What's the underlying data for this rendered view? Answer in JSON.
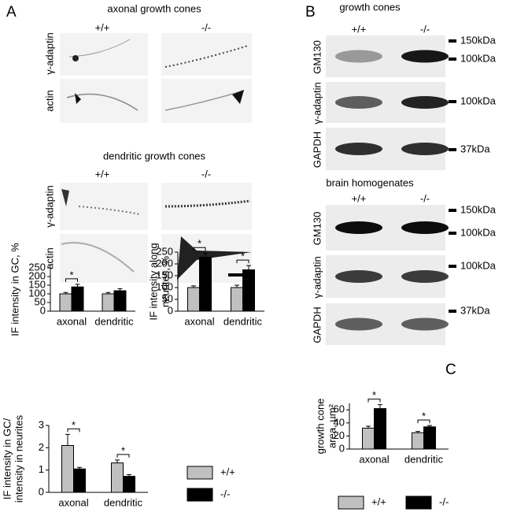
{
  "panel_A": {
    "label": "A",
    "sections": [
      {
        "title": "axonal growth cones",
        "columns": [
          "+/+",
          "-/-"
        ],
        "rows": [
          "γ-adaptin",
          "actin"
        ]
      },
      {
        "title": "dendritic growth cones",
        "columns": [
          "+/+",
          "-/-"
        ],
        "rows": [
          "γ-adaptin",
          "actin"
        ]
      }
    ]
  },
  "panel_B": {
    "label": "B",
    "sections": [
      {
        "title": "growth cones",
        "columns": [
          "+/+",
          "-/-"
        ],
        "blots": [
          {
            "label": "GM130",
            "markers": [
              "150kDa",
              "100kDa"
            ]
          },
          {
            "label": "γ-adaptin",
            "markers": [
              "100kDa"
            ]
          },
          {
            "label": "GAPDH",
            "markers": [
              "37kDa"
            ]
          }
        ]
      },
      {
        "title": "brain homogenates",
        "columns": [
          "+/+",
          "-/-"
        ],
        "blots": [
          {
            "label": "GM130",
            "markers": [
              "150kDa",
              "100kDa"
            ]
          },
          {
            "label": "γ-adaptin",
            "markers": [
              "100kDa"
            ]
          },
          {
            "label": "GAPDH",
            "markers": [
              "37kDa"
            ]
          }
        ]
      }
    ]
  },
  "panel_C": {
    "label": "C"
  },
  "chart_data": [
    {
      "type": "bar",
      "ylabel_lines": [
        "IF intensity in GC, %"
      ],
      "categories": [
        "axonal",
        "dendritic"
      ],
      "series": [
        {
          "color": "#c0c0c0",
          "values": [
            100,
            100
          ],
          "errors": [
            8,
            8
          ]
        },
        {
          "color": "#000000",
          "values": [
            140,
            118
          ],
          "errors": [
            15,
            12
          ]
        }
      ],
      "ylim": [
        0,
        250
      ],
      "yticks": [
        0,
        50,
        100,
        150,
        200,
        250
      ],
      "significant": [
        true,
        false
      ],
      "significance_label": "*",
      "legend": false
    },
    {
      "type": "bar",
      "ylabel_lines": [
        "IF intensity along",
        "neurites, %"
      ],
      "categories": [
        "axonal",
        "dendritic"
      ],
      "series": [
        {
          "color": "#c0c0c0",
          "values": [
            100,
            100
          ],
          "errors": [
            7,
            10
          ]
        },
        {
          "color": "#000000",
          "values": [
            228,
            175
          ],
          "errors": [
            18,
            18
          ]
        }
      ],
      "ylim": [
        0,
        250
      ],
      "yticks": [
        0,
        50,
        100,
        150,
        200,
        250
      ],
      "significant": [
        true,
        true
      ],
      "significance_label": "*",
      "legend": false
    },
    {
      "type": "bar",
      "ylabel_lines": [
        "IF intensity in GC/",
        "intensity in neurites"
      ],
      "categories": [
        "axonal",
        "dendritic"
      ],
      "series": [
        {
          "name": "+/+",
          "color": "#c0c0c0",
          "values": [
            2.1,
            1.32
          ],
          "errors": [
            0.5,
            0.13
          ]
        },
        {
          "name": "-/-",
          "color": "#000000",
          "values": [
            1.05,
            0.72
          ],
          "errors": [
            0.07,
            0.08
          ]
        }
      ],
      "ylim": [
        0,
        3
      ],
      "yticks": [
        0,
        1,
        2,
        3
      ],
      "significant": [
        true,
        true
      ],
      "significance_label": "*",
      "legend": true
    },
    {
      "type": "bar",
      "ylabel_lines": [
        "growth cone",
        "area, µm²"
      ],
      "categories": [
        "axonal",
        "dendritic"
      ],
      "series": [
        {
          "name": "+/+",
          "color": "#c0c0c0",
          "values": [
            32,
            25
          ],
          "errors": [
            3,
            2
          ]
        },
        {
          "name": "-/-",
          "color": "#000000",
          "values": [
            62,
            34
          ],
          "errors": [
            6,
            2
          ]
        }
      ],
      "ylim": [
        0,
        70
      ],
      "yticks": [
        0,
        20,
        40,
        60
      ],
      "significant": [
        true,
        true
      ],
      "significance_label": "*",
      "legend": true
    }
  ]
}
